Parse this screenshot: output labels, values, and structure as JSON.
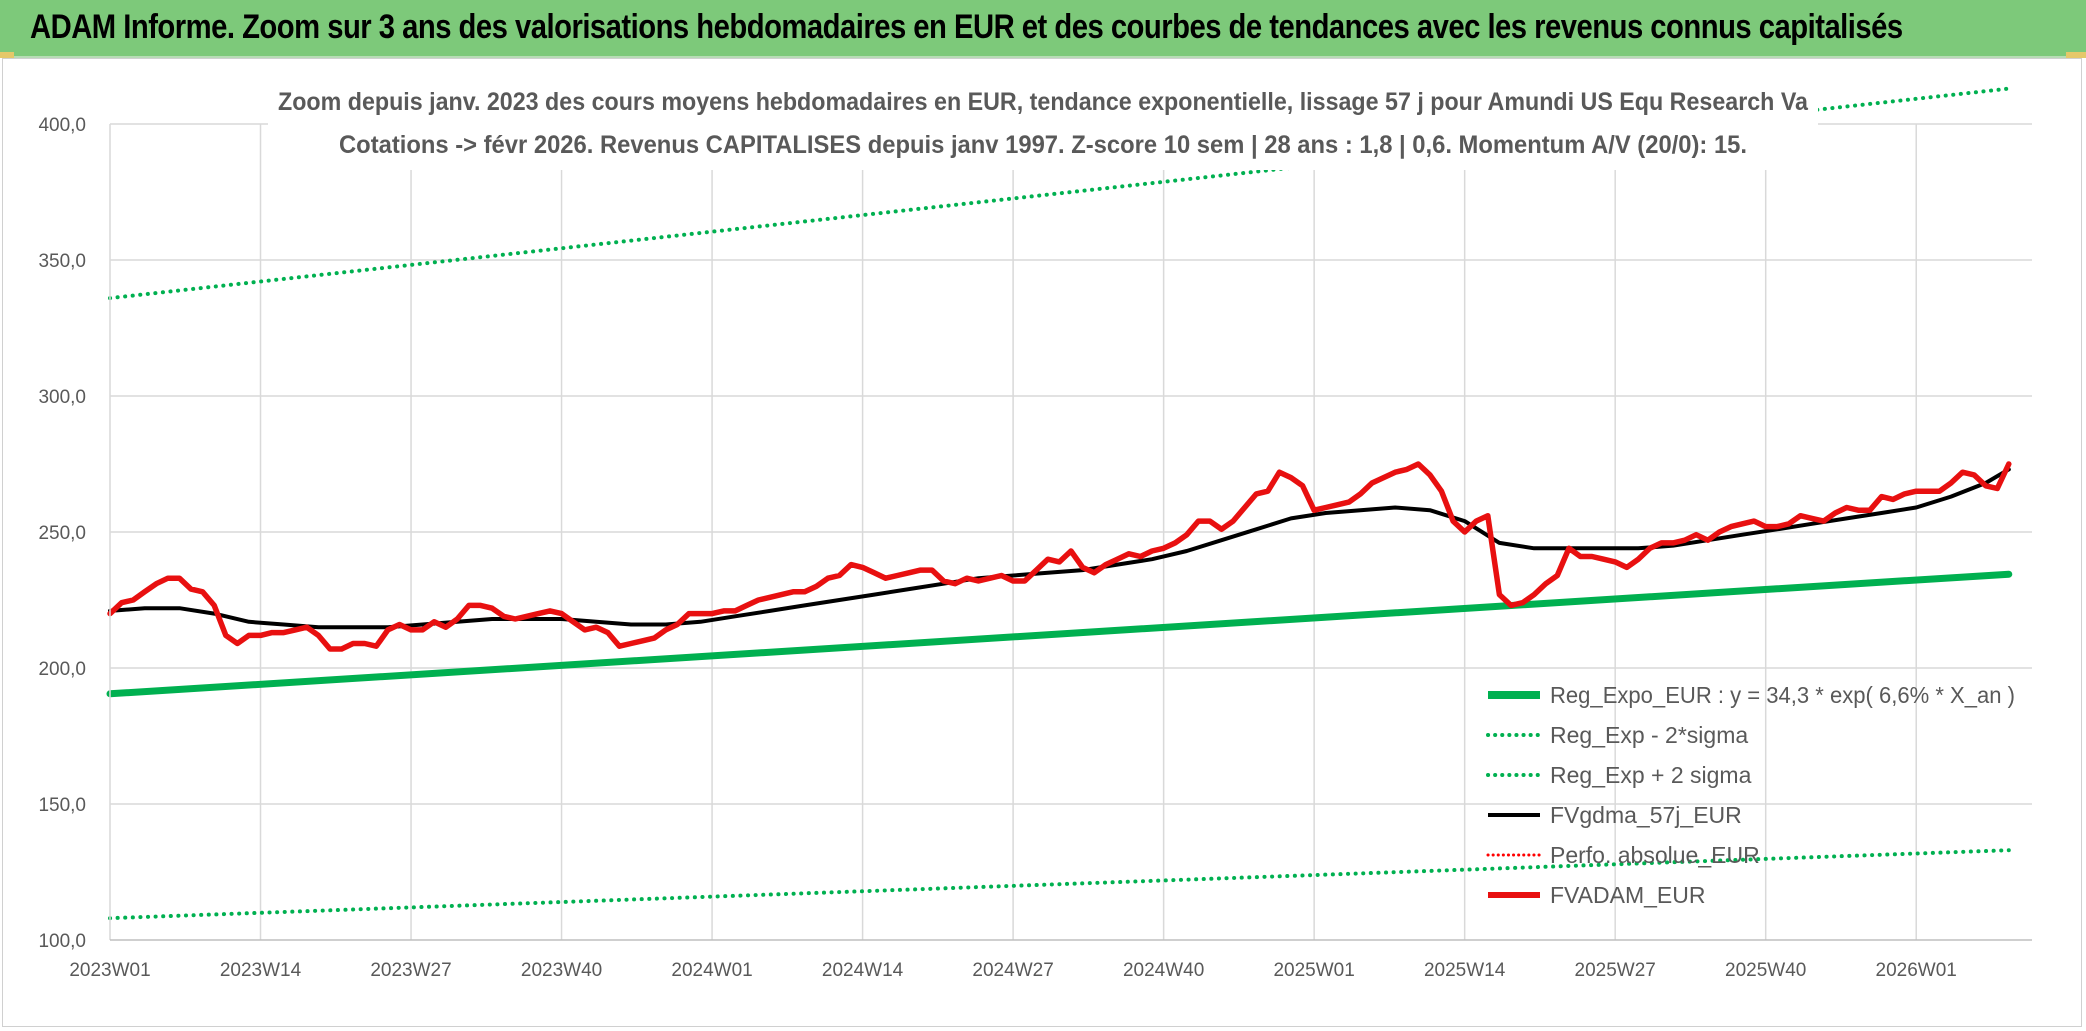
{
  "header": {
    "title": "ADAM Informe. Zoom sur 3 ans des valorisations hebdomadaires en EUR et des courbes de tendances avec les revenus connus capitalisés"
  },
  "chart_data": {
    "type": "line",
    "title_line1": "Zoom depuis janv. 2023 des cours moyens hebdomadaires en EUR, tendance exponentielle, lissage 57 j pour Amundi US Equ Research Va",
    "title_line2": "Cotations -> févr 2026. Revenus CAPITALISES depuis janv 1997. Z-score 10 sem | 28 ans : 1,8 | 0,6. Momentum A/V (20/0): 15.",
    "ylim": [
      100,
      400
    ],
    "yticks": [
      100,
      150,
      200,
      250,
      300,
      350,
      400
    ],
    "ytick_labels": [
      "100,0",
      "150,0",
      "200,0",
      "250,0",
      "300,0",
      "350,0",
      "400,0"
    ],
    "xlim": [
      0,
      166
    ],
    "xticks": [
      {
        "pos": 0,
        "label": "2023W01"
      },
      {
        "pos": 13,
        "label": "2023W14"
      },
      {
        "pos": 26,
        "label": "2023W27"
      },
      {
        "pos": 39,
        "label": "2023W40"
      },
      {
        "pos": 52,
        "label": "2024W01"
      },
      {
        "pos": 65,
        "label": "2024W14"
      },
      {
        "pos": 78,
        "label": "2024W27"
      },
      {
        "pos": 91,
        "label": "2024W40"
      },
      {
        "pos": 104,
        "label": "2025W01"
      },
      {
        "pos": 117,
        "label": "2025W14"
      },
      {
        "pos": 130,
        "label": "2025W27"
      },
      {
        "pos": 143,
        "label": "2025W40"
      },
      {
        "pos": 156,
        "label": "2026W01"
      }
    ],
    "grid": true,
    "legend_position": "bottom-right",
    "colors": {
      "reg": "#00b050",
      "gdma": "#000000",
      "perfo": "#ff0000",
      "adam": "#e81010",
      "grid": "#d9d9d9"
    },
    "series": [
      {
        "name": "Reg_Expo_EUR : y = 34,3 * exp( 6,6% *  X_an )",
        "style": "thick",
        "color": "#00b050",
        "x": [
          0,
          164
        ],
        "values": [
          190.5,
          234.5
        ]
      },
      {
        "name": "Reg_Exp - 2*sigma",
        "style": "dotted",
        "color": "#00b050",
        "x": [
          0,
          164
        ],
        "values": [
          108,
          133
        ]
      },
      {
        "name": "Reg_Exp + 2 sigma",
        "style": "dotted",
        "color": "#00b050",
        "x": [
          0,
          164
        ],
        "values": [
          336,
          413
        ]
      },
      {
        "name": "FVgdma_57j_EUR",
        "style": "solid",
        "color": "#000000",
        "x": [
          0,
          3,
          6,
          9,
          12,
          15,
          18,
          21,
          24,
          27,
          30,
          33,
          36,
          39,
          42,
          45,
          48,
          51,
          54,
          57,
          60,
          63,
          66,
          69,
          72,
          75,
          78,
          81,
          84,
          87,
          90,
          93,
          96,
          99,
          102,
          105,
          108,
          111,
          114,
          117,
          120,
          123,
          126,
          129,
          132,
          135,
          138,
          141,
          144,
          147,
          150,
          153,
          156,
          159,
          162,
          164
        ],
        "values": [
          221,
          222,
          222,
          220,
          217,
          216,
          215,
          215,
          215,
          216,
          217,
          218,
          218,
          218,
          217,
          216,
          216,
          217,
          219,
          221,
          223,
          225,
          227,
          229,
          231,
          233,
          234,
          235,
          236,
          238,
          240,
          243,
          247,
          251,
          255,
          257,
          258,
          259,
          258,
          254,
          246,
          244,
          244,
          244,
          244,
          245,
          247,
          249,
          251,
          253,
          255,
          257,
          259,
          263,
          268,
          273
        ]
      },
      {
        "name": "Perfo. absolue_EUR",
        "style": "dotted",
        "color": "#ff0000",
        "x": [],
        "values": []
      },
      {
        "name": "FVADAM_EUR",
        "style": "thick",
        "color": "#e81010",
        "x": [
          0,
          1,
          2,
          3,
          4,
          5,
          6,
          7,
          8,
          9,
          10,
          11,
          12,
          13,
          14,
          15,
          16,
          17,
          18,
          19,
          20,
          21,
          22,
          23,
          24,
          25,
          26,
          27,
          28,
          29,
          30,
          31,
          32,
          33,
          34,
          35,
          36,
          37,
          38,
          39,
          40,
          41,
          42,
          43,
          44,
          45,
          46,
          47,
          48,
          49,
          50,
          51,
          52,
          53,
          54,
          55,
          56,
          57,
          58,
          59,
          60,
          61,
          62,
          63,
          64,
          65,
          66,
          67,
          68,
          69,
          70,
          71,
          72,
          73,
          74,
          75,
          76,
          77,
          78,
          79,
          80,
          81,
          82,
          83,
          84,
          85,
          86,
          87,
          88,
          89,
          90,
          91,
          92,
          93,
          94,
          95,
          96,
          97,
          98,
          99,
          100,
          101,
          102,
          103,
          104,
          105,
          106,
          107,
          108,
          109,
          110,
          111,
          112,
          113,
          114,
          115,
          116,
          117,
          118,
          119,
          120,
          121,
          122,
          123,
          124,
          125,
          126,
          127,
          128,
          129,
          130,
          131,
          132,
          133,
          134,
          135,
          136,
          137,
          138,
          139,
          140,
          141,
          142,
          143,
          144,
          145,
          146,
          147,
          148,
          149,
          150,
          151,
          152,
          153,
          154,
          155,
          156,
          157,
          158,
          159,
          160,
          161,
          162,
          163,
          164
        ],
        "values": [
          220,
          224,
          225,
          228,
          231,
          233,
          233,
          229,
          228,
          223,
          212,
          209,
          212,
          212,
          213,
          213,
          214,
          215,
          212,
          207,
          207,
          209,
          209,
          208,
          214,
          216,
          214,
          214,
          217,
          215,
          218,
          223,
          223,
          222,
          219,
          218,
          219,
          220,
          221,
          220,
          217,
          214,
          215,
          213,
          208,
          209,
          210,
          211,
          214,
          216,
          220,
          220,
          220,
          221,
          221,
          223,
          225,
          226,
          227,
          228,
          228,
          230,
          233,
          234,
          238,
          237,
          235,
          233,
          234,
          235,
          236,
          236,
          232,
          231,
          233,
          232,
          233,
          234,
          232,
          232,
          236,
          240,
          239,
          243,
          237,
          235,
          238,
          240,
          242,
          241,
          243,
          244,
          246,
          249,
          254,
          254,
          251,
          254,
          259,
          264,
          265,
          272,
          270,
          267,
          258,
          259,
          260,
          261,
          264,
          268,
          270,
          272,
          273,
          275,
          271,
          265,
          254,
          250,
          254,
          256,
          227,
          223,
          224,
          227,
          231,
          234,
          244,
          241,
          241,
          240,
          239,
          237,
          240,
          244,
          246,
          246,
          247,
          249,
          247,
          250,
          252,
          253,
          254,
          252,
          252,
          253,
          256,
          255,
          254,
          257,
          259,
          258,
          258,
          263,
          262,
          264,
          265,
          265,
          265,
          268,
          272,
          271,
          267,
          266,
          275
        ]
      }
    ]
  }
}
